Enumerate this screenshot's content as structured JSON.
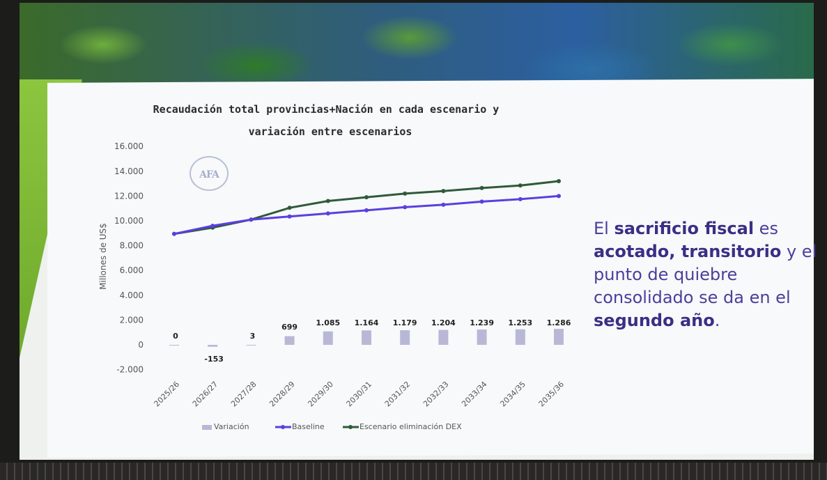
{
  "slide": {
    "message_parts": [
      {
        "text": "El ",
        "bold": false
      },
      {
        "text": "sacrificio fiscal",
        "bold": true
      },
      {
        "text": " es ",
        "bold": false
      },
      {
        "text": "acotado, transitorio",
        "bold": true
      },
      {
        "text": " y el punto de quiebre consolidado se da en el ",
        "bold": false
      },
      {
        "text": "segundo año",
        "bold": true
      },
      {
        "text": ".",
        "bold": false
      }
    ],
    "seal_text": "AFA"
  },
  "chart_data": {
    "type": "line",
    "title_lines": [
      "Recaudación total provincias+Nación en cada escenario y",
      "variación entre escenarios"
    ],
    "ylabel": "Millones de US$",
    "ylim": [
      -2000,
      16000
    ],
    "yticks": [
      "-2.000",
      "0",
      "2.000",
      "4.000",
      "6.000",
      "8.000",
      "10.000",
      "12.000",
      "14.000",
      "16.000"
    ],
    "categories": [
      "2025/26",
      "2026/27",
      "2027/28",
      "2028/29",
      "2029/30",
      "2030/31",
      "2031/32",
      "2032/33",
      "2033/34",
      "2034/35",
      "2035/36"
    ],
    "series": [
      {
        "name": "Variación",
        "kind": "bar",
        "color": "#b8b8d6",
        "values": [
          0,
          -153,
          3,
          699,
          1085,
          1164,
          1179,
          1204,
          1239,
          1253,
          1286
        ],
        "labels": [
          "0",
          "-153",
          "3",
          "699",
          "1.085",
          "1.164",
          "1.179",
          "1.204",
          "1.239",
          "1.253",
          "1.286"
        ]
      },
      {
        "name": "Baseline",
        "kind": "line",
        "color": "#5a3fe0",
        "values": [
          8950,
          9600,
          10100,
          10350,
          10600,
          10850,
          11100,
          11300,
          11550,
          11750,
          12000
        ]
      },
      {
        "name": "Escenario eliminación DEX",
        "kind": "line",
        "color": "#2f5a3a",
        "values": [
          8950,
          9450,
          10100,
          11050,
          11600,
          11900,
          12200,
          12400,
          12650,
          12850,
          13200
        ]
      }
    ],
    "legend_position": "bottom"
  }
}
